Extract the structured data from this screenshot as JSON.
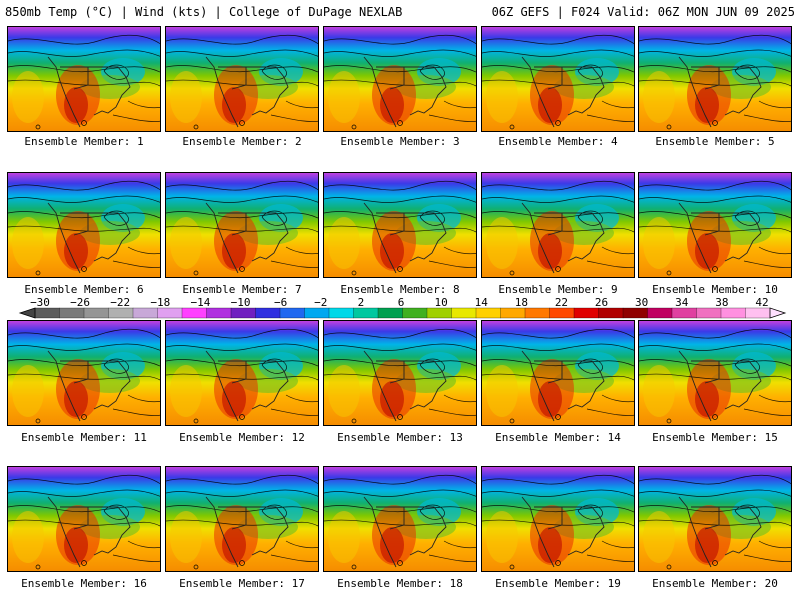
{
  "header": {
    "left": "850mb Temp (°C) | Wind (kts) | College of DuPage NEXLAB",
    "right": "06Z GEFS | F024 Valid: 06Z MON JUN 09 2025"
  },
  "panels": [
    {
      "label": "Ensemble Member: 1"
    },
    {
      "label": "Ensemble Member: 2"
    },
    {
      "label": "Ensemble Member: 3"
    },
    {
      "label": "Ensemble Member: 4"
    },
    {
      "label": "Ensemble Member: 5"
    },
    {
      "label": "Ensemble Member: 6"
    },
    {
      "label": "Ensemble Member: 7"
    },
    {
      "label": "Ensemble Member: 8"
    },
    {
      "label": "Ensemble Member: 9"
    },
    {
      "label": "Ensemble Member: 10"
    },
    {
      "label": "Ensemble Member: 11"
    },
    {
      "label": "Ensemble Member: 12"
    },
    {
      "label": "Ensemble Member: 13"
    },
    {
      "label": "Ensemble Member: 14"
    },
    {
      "label": "Ensemble Member: 15"
    },
    {
      "label": "Ensemble Member: 16"
    },
    {
      "label": "Ensemble Member: 17"
    },
    {
      "label": "Ensemble Member: 18"
    },
    {
      "label": "Ensemble Member: 19"
    },
    {
      "label": "Ensemble Member: 20"
    }
  ],
  "colorbar": {
    "ticks": [
      "−30",
      "−26",
      "−22",
      "−18",
      "−14",
      "−10",
      "−6",
      "−2",
      "2",
      "6",
      "10",
      "14",
      "18",
      "22",
      "26",
      "30",
      "34",
      "38",
      "42"
    ],
    "colors": [
      "#5c5c5c",
      "#7a7a7a",
      "#959595",
      "#b0b0b0",
      "#c8a8d8",
      "#e0a0f0",
      "#ff40ff",
      "#b030e0",
      "#7020c0",
      "#3030e0",
      "#2068f0",
      "#00a8f0",
      "#00d8e8",
      "#00c8a0",
      "#00a050",
      "#40b020",
      "#a0d000",
      "#e8e800",
      "#ffd000",
      "#ffa800",
      "#ff7800",
      "#ff4800",
      "#e00000",
      "#b00000",
      "#900000",
      "#c00060",
      "#e040a0",
      "#f070c0",
      "#ff90e0",
      "#ffc0f0"
    ]
  }
}
